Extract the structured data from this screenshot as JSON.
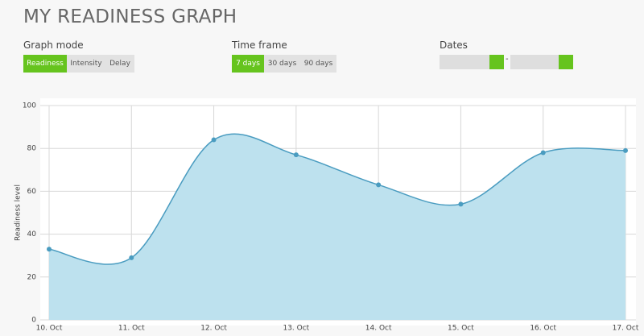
{
  "header": {
    "title": "MY READINESS GRAPH"
  },
  "controls": [
    {
      "label": "Graph mode",
      "options": [
        "Readiness",
        "Intensity",
        "Delay"
      ],
      "active": 0
    },
    {
      "label": "Time frame",
      "options": [
        "7 days",
        "30 days",
        "90 days"
      ],
      "active": 0
    }
  ],
  "dates": {
    "label": "Dates",
    "separator": "-"
  },
  "chart_data": {
    "type": "area",
    "ylabel": "Readiness level",
    "categories": [
      "10. Oct",
      "11. Oct",
      "12. Oct",
      "13. Oct",
      "14. Oct",
      "15. Oct",
      "16. Oct",
      "17. Oct"
    ],
    "values": [
      33,
      29,
      84,
      77,
      63,
      54,
      78,
      79
    ],
    "color": "#4a9cc0",
    "fill_color": "#bde1ee",
    "ylim": [
      0,
      100
    ],
    "yticks": [
      0,
      20,
      40,
      60,
      80,
      100
    ],
    "grid": true
  }
}
